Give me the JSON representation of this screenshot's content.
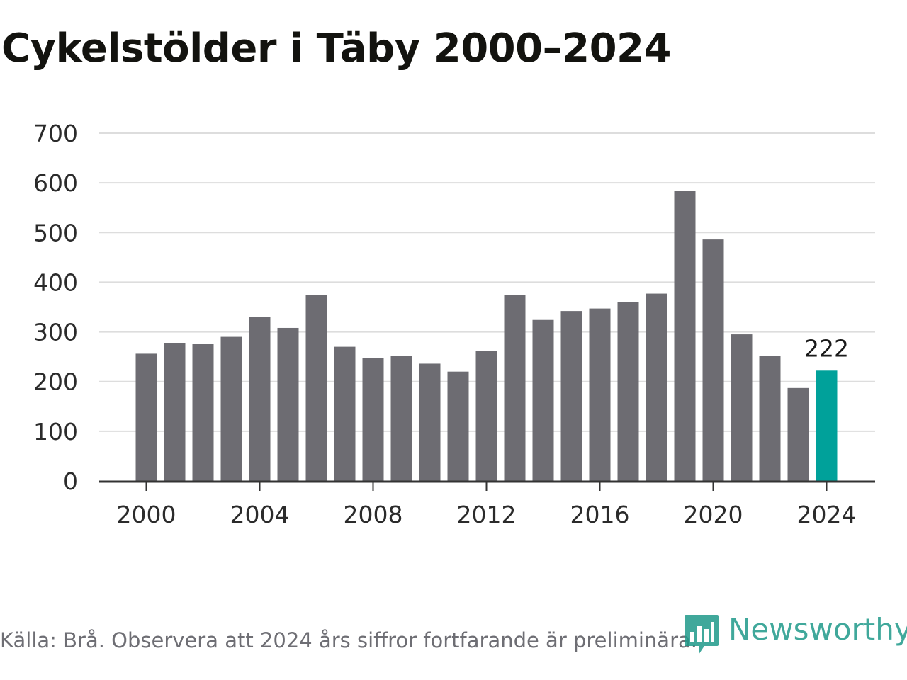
{
  "title": "Cykelstölder i Täby 2000–2024",
  "source": "Källa: Brå. Observera att 2024 års siffror fortfarande är preliminära.",
  "brand": {
    "name": "Newsworthy",
    "icon": "bar-chart-marker-icon",
    "color": "#1f9a8a"
  },
  "colors": {
    "bar": "#6d6c72",
    "highlight": "#00a19a",
    "grid": "#dddddd",
    "axis": "#333333"
  },
  "chart_data": {
    "type": "bar",
    "categories": [
      "2000",
      "2001",
      "2002",
      "2003",
      "2004",
      "2005",
      "2006",
      "2007",
      "2008",
      "2009",
      "2010",
      "2011",
      "2012",
      "2013",
      "2014",
      "2015",
      "2016",
      "2017",
      "2018",
      "2019",
      "2020",
      "2021",
      "2022",
      "2023",
      "2024"
    ],
    "values": [
      256,
      278,
      276,
      290,
      330,
      308,
      374,
      270,
      247,
      252,
      236,
      220,
      262,
      374,
      324,
      342,
      347,
      360,
      377,
      584,
      486,
      295,
      252,
      187,
      222
    ],
    "highlight_index": 24,
    "data_labels": [
      {
        "index": 24,
        "text": "222"
      }
    ],
    "ylim": [
      0,
      700
    ],
    "yticks": [
      0,
      100,
      200,
      300,
      400,
      500,
      600,
      700
    ],
    "xticks": [
      "2000",
      "2004",
      "2008",
      "2012",
      "2016",
      "2020",
      "2024"
    ],
    "grid": true,
    "xlabel": "",
    "ylabel": ""
  }
}
